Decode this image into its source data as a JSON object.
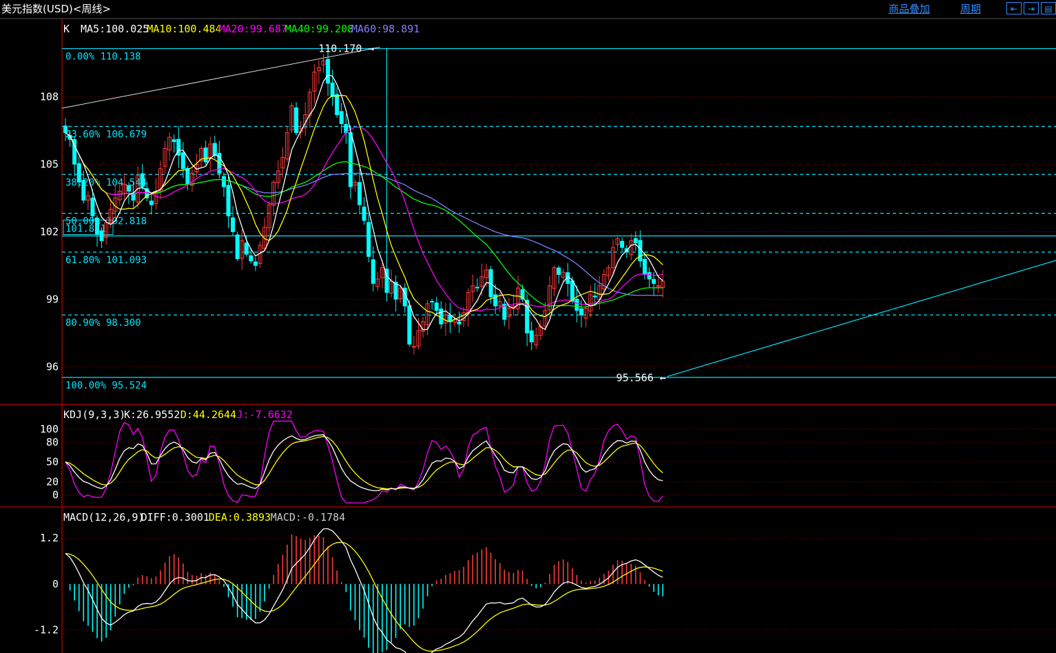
{
  "header": {
    "title": "美元指数(USD)<周线>",
    "overlay_link": "商品叠加",
    "period_link": "周期",
    "nav_icons": [
      "nav-left-icon",
      "nav-right-icon",
      "nav-layout-icon"
    ]
  },
  "colors": {
    "up": "#ff3b3b",
    "down": "#00ffff",
    "ma5": "#ffffff",
    "ma10": "#ffff00",
    "ma20": "#ff00ff",
    "ma40": "#00ff00",
    "ma60": "#8080ff",
    "fib": "#00e5ff",
    "grid": "#a00000",
    "axis": "#ffffff",
    "trendline": "#ffffff"
  },
  "chart_data": [
    {
      "type": "candlestick",
      "pane": "price",
      "legend": {
        "prefix": "K",
        "items": [
          {
            "label": "MA5:100.025",
            "color": "#ffffff"
          },
          {
            "label": "MA10:100.484",
            "color": "#ffff00"
          },
          {
            "label": "MA20:99.687",
            "color": "#ff00ff"
          },
          {
            "label": "MA40:99.208",
            "color": "#00ff00"
          },
          {
            "label": "MA60:98.891",
            "color": "#8080ff"
          }
        ]
      },
      "y_ticks": [
        "108",
        "105",
        "102",
        "99",
        "96"
      ],
      "y_tick_values": [
        108,
        105,
        102,
        99,
        96
      ],
      "ylim": [
        95.0,
        110.4
      ],
      "fib_levels": [
        {
          "label": "0.00% 110.138",
          "value": 110.138,
          "style": "solid"
        },
        {
          "label": "23.60% 106.679",
          "value": 106.679,
          "style": "dashed"
        },
        {
          "label": "38.20% 104.544",
          "value": 104.544,
          "style": "dashed"
        },
        {
          "label": "50.00% 102.818",
          "value": 102.818,
          "style": "dashed"
        },
        {
          "label": "61.80% 101.093",
          "value": 101.093,
          "style": "dashed"
        },
        {
          "label": "80.90% 98.300",
          "value": 98.3,
          "style": "dashed"
        },
        {
          "label": "100.00% 95.524",
          "value": 95.524,
          "style": "solid"
        }
      ],
      "hline_label": "101.811",
      "hline_value": 101.811,
      "high_marker": {
        "label": "110.170",
        "value": 110.17,
        "index": 71
      },
      "low_marker": {
        "label": "95.566",
        "value": 95.566,
        "index": 133
      },
      "closes": [
        106.4,
        106.1,
        105.0,
        104.2,
        103.4,
        103.6,
        102.7,
        101.9,
        101.6,
        102.4,
        103.0,
        103.5,
        103.8,
        104.1,
        103.8,
        103.4,
        104.5,
        104.0,
        103.5,
        103.2,
        103.8,
        104.8,
        105.7,
        106.2,
        106.0,
        105.4,
        104.8,
        104.1,
        104.6,
        105.0,
        105.7,
        105.1,
        105.9,
        105.4,
        104.6,
        104.0,
        102.7,
        102.0,
        100.8,
        101.6,
        101.0,
        100.7,
        100.5,
        101.4,
        102.2,
        103.2,
        104.2,
        104.7,
        105.3,
        106.4,
        107.6,
        106.4,
        106.6,
        107.2,
        108.2,
        109.1,
        109.3,
        109.6,
        108.6,
        108.0,
        107.2,
        106.8,
        106.4,
        104.0,
        104.2,
        103.2,
        102.5,
        100.9,
        99.7,
        99.9,
        100.4,
        99.3,
        99.8,
        99.0,
        99.5,
        98.7,
        97.0,
        96.9,
        97.6,
        98.0,
        98.8,
        98.9,
        98.5,
        97.9,
        98.3,
        98.0,
        98.1,
        97.9,
        98.4,
        99.3,
        99.6,
        99.5,
        100.0,
        100.3,
        99.1,
        98.7,
        98.9,
        98.1,
        98.6,
        98.7,
        99.5,
        99.0,
        97.5,
        97.1,
        97.4,
        97.8,
        98.5,
        99.6,
        100.4,
        100.1,
        100.2,
        99.7,
        98.9,
        98.5,
        98.3,
        98.6,
        99.2,
        99.1,
        99.6,
        100.1,
        100.4,
        101.3,
        101.7,
        101.3,
        101.1,
        101.6,
        101.5,
        100.7,
        100.1,
        99.9,
        99.7,
        99.6,
        99.8
      ]
    },
    {
      "type": "line",
      "pane": "KDJ",
      "legend": {
        "prefix": "KDJ(9,3,3)",
        "items": [
          {
            "label": "K:26.9552",
            "color": "#ffffff"
          },
          {
            "label": "D:44.2644",
            "color": "#ffff00"
          },
          {
            "label": "J:-7.6632",
            "color": "#ff00ff"
          }
        ]
      },
      "y_ticks": [
        "100",
        "80",
        "50",
        "20",
        "0"
      ],
      "y_tick_values": [
        100,
        80,
        50,
        20,
        0
      ],
      "ylim": [
        -15,
        105
      ]
    },
    {
      "type": "bar",
      "pane": "MACD",
      "legend": {
        "prefix": "MACD(12,26,9)",
        "items": [
          {
            "label": "DIFF:0.3001",
            "color": "#ffffff"
          },
          {
            "label": "DEA:0.3893",
            "color": "#ffff00"
          },
          {
            "label": "MACD:-0.1784",
            "color": "#cccccc"
          }
        ]
      },
      "y_ticks": [
        "1.2",
        "0",
        "-1.2"
      ],
      "y_tick_values": [
        1.2,
        0,
        -1.2
      ],
      "ylim": [
        -1.8,
        1.4
      ]
    }
  ]
}
